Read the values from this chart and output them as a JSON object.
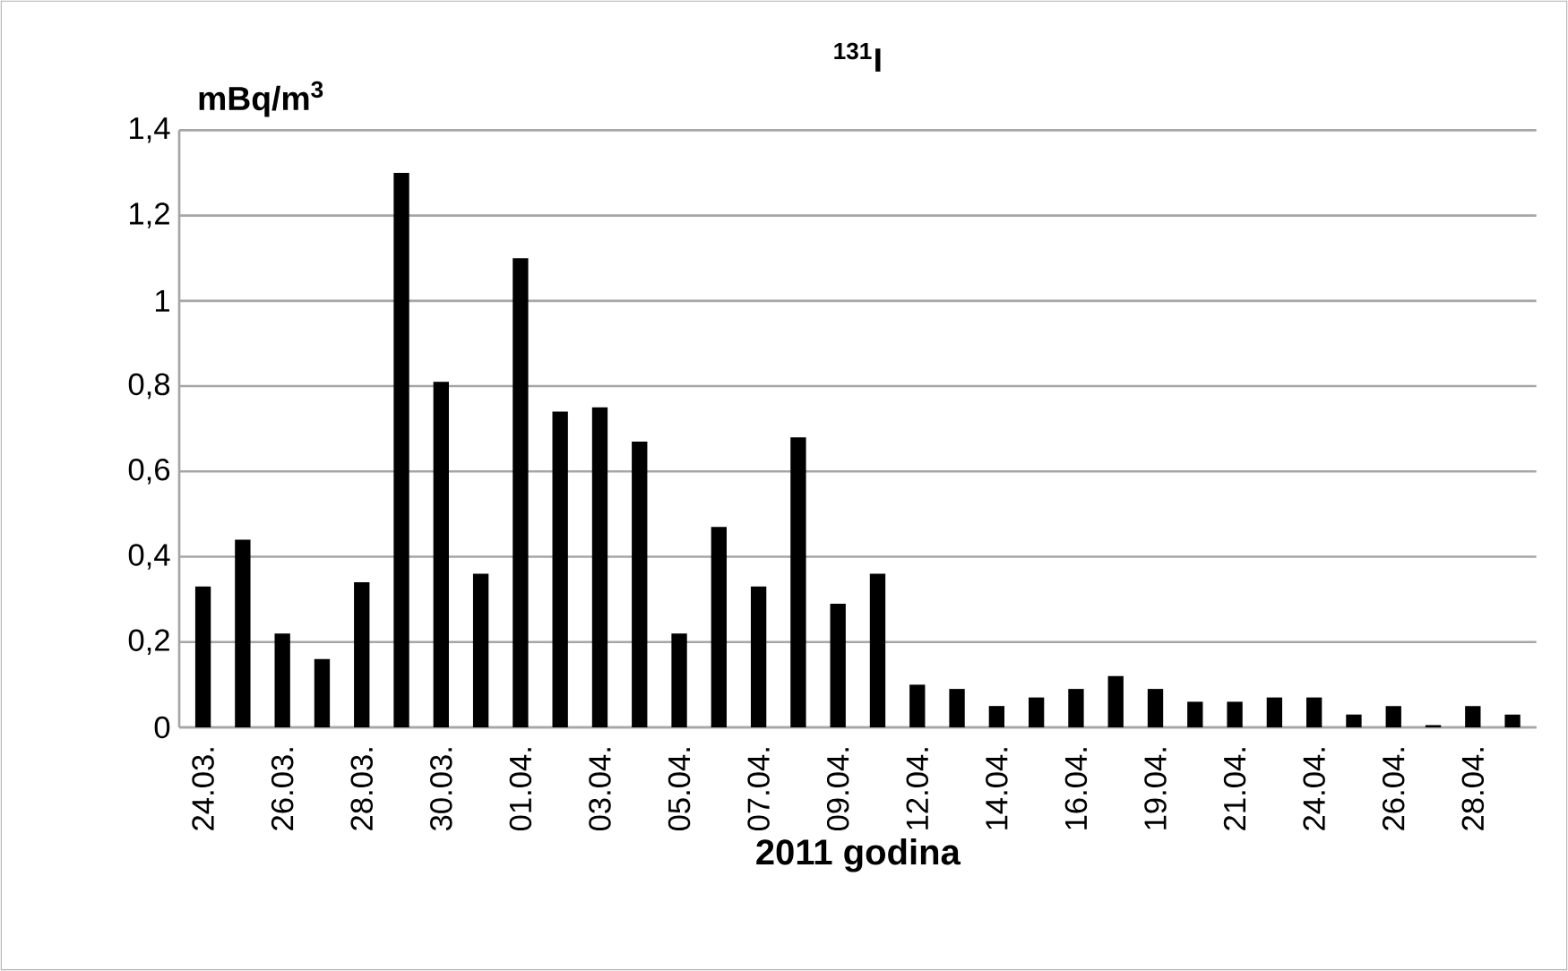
{
  "chart_data": {
    "type": "bar",
    "title": "$^{131}$I",
    "ylabel": "mBq/m$^{3}$",
    "xlabel": "2011 godina",
    "categories": [
      "24.03.",
      null,
      "26.03.",
      null,
      "28.03.",
      null,
      "30.03.",
      null,
      "01.04.",
      null,
      "03.04.",
      null,
      "05.04.",
      null,
      "07.04.",
      null,
      "09.04.",
      null,
      "12.04.",
      null,
      "14.04.",
      null,
      "16.04.",
      null,
      "19.04.",
      null,
      "21.04.",
      null,
      "24.04.",
      null,
      "26.04.",
      null,
      "28.04.",
      null
    ],
    "values": [
      0.33,
      0.44,
      0.22,
      0.16,
      0.34,
      1.3,
      0.81,
      0.36,
      1.1,
      0.74,
      0.75,
      0.67,
      0.22,
      0.47,
      0.33,
      0.68,
      0.29,
      0.36,
      0.1,
      0.09,
      0.05,
      0.07,
      0.09,
      0.12,
      0.09,
      0.06,
      0.06,
      0.07,
      0.07,
      0.03,
      0.05,
      0.005,
      0.05,
      0.03
    ],
    "color": "#000000",
    "ylim": [
      0,
      1.4
    ],
    "yticks": [
      0,
      {
        "value": 0.2,
        "label": "0,2"
      },
      {
        "value": 0.4,
        "label": "0,4"
      },
      {
        "value": 0.6,
        "label": "0,6"
      },
      {
        "value": 0.8,
        "label": "0,8"
      },
      1,
      {
        "value": 1.2,
        "label": "1,2"
      },
      {
        "value": 1.4,
        "label": "1,4"
      }
    ],
    "grid": "y"
  }
}
